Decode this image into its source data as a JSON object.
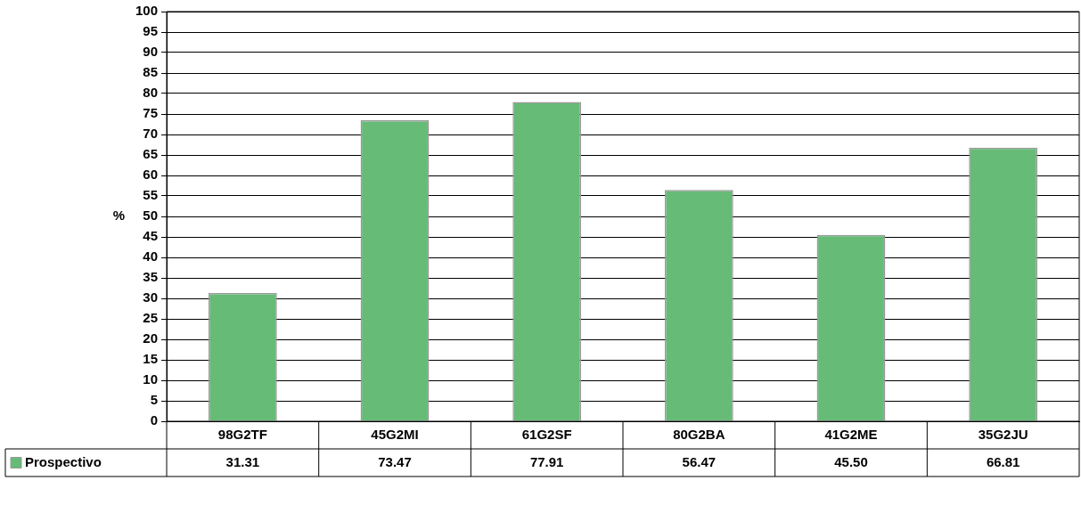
{
  "chart_data": {
    "type": "bar",
    "ylabel": "%",
    "categories": [
      "98G2TF",
      "45G2MI",
      "61G2SF",
      "80G2BA",
      "41G2ME",
      "35G2JU"
    ],
    "series": [
      {
        "name": "Prospectivo",
        "color": "#66bb77",
        "values": [
          31.31,
          73.47,
          77.91,
          56.47,
          45.5,
          66.81
        ],
        "value_labels": [
          "31.31",
          "73.47",
          "77.91",
          "56.47",
          "45.50",
          "66.81"
        ]
      }
    ],
    "ylim": [
      0,
      100
    ],
    "yticks": [
      0,
      5,
      10,
      15,
      20,
      25,
      30,
      35,
      40,
      45,
      50,
      55,
      60,
      65,
      70,
      75,
      80,
      85,
      90,
      95,
      100
    ],
    "grid": "y",
    "legend": "bottom left",
    "data_labels": true
  }
}
